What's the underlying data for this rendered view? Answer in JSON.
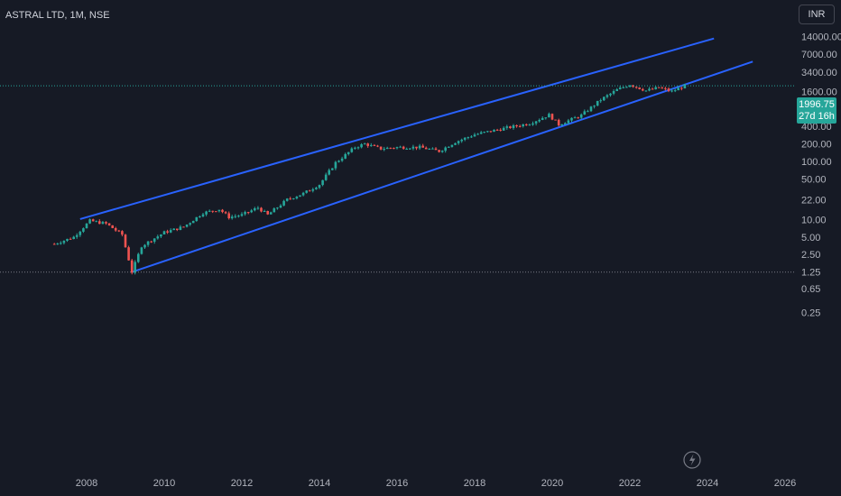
{
  "header": {
    "title": "ASTRAL LTD, 1M, NSE"
  },
  "currency_button": {
    "label": "INR"
  },
  "price_label": {
    "price": "1996.75",
    "countdown": "27d 16h"
  },
  "colors": {
    "background": "#161a25",
    "up": "#26a69a",
    "down": "#ef5350",
    "trendline": "#2962ff",
    "text": "#b2b5be"
  },
  "icons": {
    "replay": "lightning-icon"
  },
  "chart_data": {
    "type": "candlestick",
    "title": "ASTRAL LTD, 1M, NSE",
    "y_scale": "log",
    "x_ticks": [
      "2008",
      "2010",
      "2012",
      "2014",
      "2016",
      "2018",
      "2020",
      "2022",
      "2024",
      "2026"
    ],
    "y_ticks": [
      "14000.00",
      "7000.00",
      "3400.00",
      "1600.00",
      "800.00",
      "400.00",
      "200.00",
      "100.00",
      "50.00",
      "22.00",
      "10.00",
      "5.00",
      "2.50",
      "1.25",
      "0.65",
      "0.25"
    ],
    "ylim": [
      0.2,
      16000
    ],
    "last_price": 1996.75,
    "low_marker": 1.25,
    "grid": false,
    "price_path": [
      [
        "2007-03",
        3.8
      ],
      [
        "2007-09",
        5.0
      ],
      [
        "2008-02",
        9.5
      ],
      [
        "2008-07",
        8.5
      ],
      [
        "2008-12",
        5.5
      ],
      [
        "2009-03",
        1.25
      ],
      [
        "2009-06",
        3.5
      ],
      [
        "2010-01",
        6.0
      ],
      [
        "2010-07",
        7.5
      ],
      [
        "2011-01",
        13
      ],
      [
        "2011-06",
        15
      ],
      [
        "2011-09",
        11
      ],
      [
        "2012-01",
        12
      ],
      [
        "2012-06",
        16
      ],
      [
        "2012-09",
        12
      ],
      [
        "2013-03",
        22
      ],
      [
        "2013-08",
        28
      ],
      [
        "2014-01",
        40
      ],
      [
        "2014-06",
        95
      ],
      [
        "2014-12",
        175
      ],
      [
        "2015-03",
        200
      ],
      [
        "2015-08",
        165
      ],
      [
        "2016-01",
        175
      ],
      [
        "2016-08",
        175
      ],
      [
        "2017-02",
        150
      ],
      [
        "2017-07",
        215
      ],
      [
        "2018-01",
        290
      ],
      [
        "2018-08",
        350
      ],
      [
        "2019-06",
        450
      ],
      [
        "2019-12",
        630
      ],
      [
        "2020-03",
        430
      ],
      [
        "2020-10",
        620
      ],
      [
        "2021-04",
        1150
      ],
      [
        "2021-09",
        1700
      ],
      [
        "2022-01",
        2100
      ],
      [
        "2022-06",
        1650
      ],
      [
        "2022-10",
        1850
      ],
      [
        "2023-02",
        1600
      ],
      [
        "2023-06",
        1996.75
      ]
    ],
    "trendlines": [
      {
        "name": "",
        "points": [
          [
            "2007-11",
            10.2
          ],
          [
            "2024-03",
            13000
          ]
        ]
      },
      {
        "name": "",
        "points": [
          [
            "2009-03",
            1.25
          ],
          [
            "2025-03",
            5200
          ]
        ]
      }
    ]
  }
}
